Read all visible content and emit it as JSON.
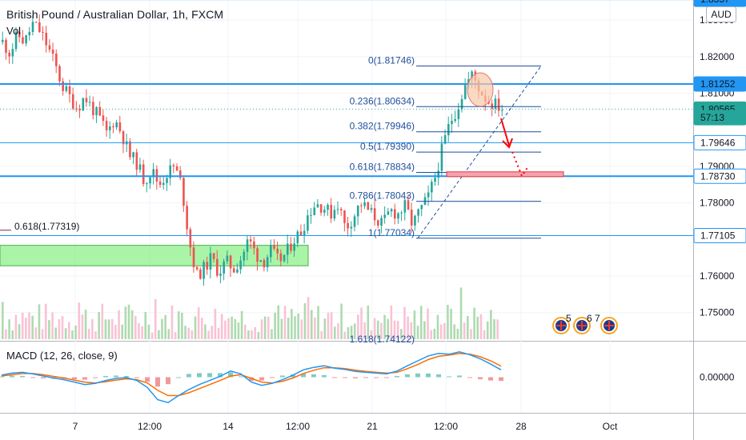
{
  "header": {
    "title": "British Pound / Australian Dollar, 1h, FXCM",
    "volume_label": "Vol",
    "macd_label": "MACD (12, 26, close, 9)",
    "currency_badge": "AUD"
  },
  "chart_data": {
    "type": "candlestick",
    "symbol": "GBPAUD",
    "timeframe": "1h",
    "ylim": [
      1.7425,
      1.8355
    ],
    "y_ticks": [
      "1.83000",
      "1.82000",
      "1.81000",
      "1.79000",
      "1.78000",
      "1.76000",
      "1.75000"
    ],
    "x_ticks": [
      {
        "label": "7",
        "x": 94
      },
      {
        "label": "12:00",
        "x": 187
      },
      {
        "label": "14",
        "x": 285
      },
      {
        "label": "12:00",
        "x": 372
      },
      {
        "label": "21",
        "x": 465
      },
      {
        "label": "12:00",
        "x": 557
      },
      {
        "label": "28",
        "x": 651
      },
      {
        "label": "Oct",
        "x": 762
      }
    ],
    "price_badges": [
      {
        "label": "1.8357",
        "value": 1.8357,
        "color": "#2196f3",
        "text_color": "#ffffff"
      },
      {
        "label": "1.81252",
        "value": 1.81252,
        "color": "#2196f3",
        "text_color": "#ffffff"
      },
      {
        "label": "1.80565",
        "value": 1.80565,
        "color": "#26a69a",
        "text_color": "#ffffff"
      },
      {
        "label": "57:13",
        "value": 1.8033,
        "color": "#26a69a",
        "text_color": "#ffffff"
      },
      {
        "label": "1.79646",
        "value": 1.79646,
        "color": "#ffffff",
        "text_color": "#131722",
        "border": "#2196f3"
      },
      {
        "label": "1.78730",
        "value": 1.7873,
        "color": "#ffffff",
        "text_color": "#131722",
        "border": "#2196f3"
      },
      {
        "label": "1.77105",
        "value": 1.77105,
        "color": "#ffffff",
        "text_color": "#131722",
        "border": "#2196f3"
      }
    ],
    "horizontal_levels": [
      {
        "value": 1.8357,
        "width": 2
      },
      {
        "value": 1.81252,
        "width": 2
      },
      {
        "value": 1.79646,
        "width": 1
      },
      {
        "value": 1.7873,
        "width": 2
      },
      {
        "value": 1.77105,
        "width": 1
      }
    ],
    "fibonacci": [
      {
        "label": "0(1.81746)",
        "value": 1.81746
      },
      {
        "label": "0.236(1.80634)",
        "value": 1.80634
      },
      {
        "label": "0.382(1.79946)",
        "value": 1.79946
      },
      {
        "label": "0.5(1.79390)",
        "value": 1.7939
      },
      {
        "label": "0.618(1.78834)",
        "value": 1.78834
      },
      {
        "label": "0.786(1.78043)",
        "value": 1.78043
      },
      {
        "label": "1(1.77034)",
        "value": 1.77034
      },
      {
        "label": "1.618(1.74122)",
        "value": 1.74122
      }
    ],
    "left_fib_label": "0.618(1.77319)",
    "demand_zone": {
      "y_top": 1.7684,
      "y_bottom": 1.7628
    },
    "target_zone": {
      "y_top": 1.7885,
      "y_bottom": 1.7876
    },
    "close_series": [
      1.824,
      1.821,
      1.826,
      1.824,
      1.829,
      1.827,
      1.823,
      1.818,
      1.812,
      1.809,
      1.806,
      1.809,
      1.806,
      1.803,
      1.799,
      1.803,
      1.799,
      1.793,
      1.791,
      1.786,
      1.789,
      1.785,
      1.788,
      1.79,
      1.785,
      1.77,
      1.76,
      1.762,
      1.765,
      1.761,
      1.764,
      1.762,
      1.765,
      1.77,
      1.766,
      1.764,
      1.767,
      1.764,
      1.766,
      1.77,
      1.772,
      1.777,
      1.78,
      1.779,
      1.777,
      1.78,
      1.773,
      1.776,
      1.78,
      1.778,
      1.776,
      1.774,
      1.778,
      1.777,
      1.779,
      1.774,
      1.778,
      1.781,
      1.787,
      1.795,
      1.802,
      1.806,
      1.812,
      1.815,
      1.811,
      1.808,
      1.807,
      1.806
    ],
    "macd": {
      "ylim": [
        -0.0085,
        0.0085
      ],
      "y_ticks": [
        "0.00000"
      ],
      "macd_series": [
        0.0005,
        0.001,
        0.0012,
        0.0008,
        0.0003,
        -0.0002,
        -0.0006,
        -0.0012,
        -0.0018,
        -0.0015,
        -0.0008,
        -0.0003,
        -0.0001,
        -0.0008,
        -0.0025,
        -0.0055,
        -0.0062,
        -0.0045,
        -0.003,
        -0.0018,
        -0.0008,
        0.0002,
        0.0015,
        0.0008,
        -0.0012,
        -0.002,
        -0.0015,
        -0.0006,
        0.0005,
        0.0018,
        0.0024,
        0.0028,
        0.0022,
        0.0019,
        0.0014,
        0.0012,
        0.001,
        0.0008,
        0.0015,
        0.0028,
        0.004,
        0.0052,
        0.0058,
        0.0056,
        0.0062,
        0.0055,
        0.0045,
        0.0032,
        0.0018
      ],
      "signal_series": [
        0.0003,
        0.0006,
        0.0009,
        0.0009,
        0.0006,
        0.0002,
        -0.0002,
        -0.0007,
        -0.0012,
        -0.0014,
        -0.0011,
        -0.0007,
        -0.0004,
        -0.0006,
        -0.0014,
        -0.0032,
        -0.0045,
        -0.0045,
        -0.0038,
        -0.0028,
        -0.0018,
        -0.0008,
        0.0003,
        0.0006,
        -0.0003,
        -0.0012,
        -0.0014,
        -0.001,
        -0.0002,
        0.0009,
        0.0017,
        0.0023,
        0.0023,
        0.0021,
        0.0017,
        0.0014,
        0.0012,
        0.001,
        0.0012,
        0.0021,
        0.0031,
        0.0043,
        0.0051,
        0.0054,
        0.0058,
        0.0056,
        0.005,
        0.004,
        0.0027
      ]
    },
    "colors": {
      "up": "#26a69a",
      "down": "#ef5350",
      "level": "#2196f3",
      "macd_line": "#2196f3",
      "signal_line": "#ff6d00",
      "fib": "#1f4e9c",
      "demand_fill": "#8ef08a",
      "target_fill": "#f5a3b1",
      "ellipse": "#f8c9a8",
      "arrow": "#ff0000"
    },
    "grid": true
  }
}
